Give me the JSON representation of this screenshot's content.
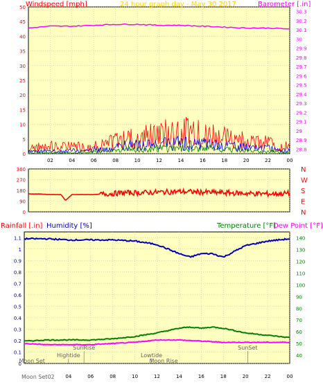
{
  "colors": {
    "frame_bg": "#ffffff",
    "plot_bg": "#ffffc0",
    "grid": "#b8b8b8",
    "wind_red": "#ff0000",
    "wind_blue": "#0000ff",
    "wind_green": "#008000",
    "barometer": "#ff00ff",
    "title": "#ffd000",
    "dir_line": "#ff0000",
    "humidity": "#0000c0",
    "temperature": "#008000",
    "dewpoint": "#ff00ff",
    "events": "#606060"
  },
  "chart_data": [
    {
      "type": "line",
      "title": "24 hour graph day - May 30 2017",
      "left_axis_label": "Windspeed [mph]",
      "right_axis_label": "Barometer [.in]",
      "x_tick_labels": [
        "02",
        "04",
        "06",
        "08",
        "10",
        "12",
        "14",
        "16",
        "18",
        "20",
        "22",
        "00"
      ],
      "x_ticks_hour": [
        2,
        4,
        6,
        8,
        10,
        12,
        14,
        16,
        18,
        20,
        22,
        24
      ],
      "y_left_ticks": [
        "0",
        "5",
        "10",
        "15",
        "20",
        "25",
        "30",
        "35",
        "40",
        "45",
        "50"
      ],
      "y_left_range": [
        0,
        50
      ],
      "y_right_ticks": [
        "28.8",
        "28.9",
        "29",
        "29.1",
        "29.2",
        "29.3",
        "29.4",
        "29.5",
        "29.6",
        "29.7",
        "29.8",
        "29.9",
        "30",
        "30.1",
        "30.2",
        "30.3"
      ],
      "y_right_range": [
        28.75,
        30.35
      ],
      "series": [
        {
          "kind": "wind_gust",
          "x_hours": [
            0,
            1,
            2,
            3,
            4,
            5,
            6,
            7,
            8,
            9,
            10,
            11,
            12,
            13,
            14,
            15,
            16,
            17,
            18,
            19,
            20,
            21,
            22,
            23,
            24
          ],
          "values": [
            3,
            3,
            4,
            3,
            4,
            3,
            4,
            4,
            6,
            8,
            8,
            8,
            9,
            10,
            10,
            10,
            9,
            9,
            8,
            7,
            6,
            5,
            5,
            4,
            3
          ]
        },
        {
          "kind": "wind_avg",
          "x_hours": [
            0,
            1,
            2,
            3,
            4,
            5,
            6,
            7,
            8,
            9,
            10,
            11,
            12,
            13,
            14,
            15,
            16,
            17,
            18,
            19,
            20,
            21,
            22,
            23,
            24
          ],
          "values": [
            1,
            1,
            1.5,
            1,
            1.5,
            1,
            2,
            2,
            3,
            4,
            4,
            4,
            4.5,
            5,
            5,
            5,
            4.5,
            4.5,
            4,
            3.5,
            3,
            2.5,
            2.5,
            2,
            1.5
          ]
        },
        {
          "kind": "wind_low",
          "x_hours": [
            0,
            1,
            2,
            3,
            4,
            5,
            6,
            7,
            8,
            9,
            10,
            11,
            12,
            13,
            14,
            15,
            16,
            17,
            18,
            19,
            20,
            21,
            22,
            23,
            24
          ],
          "values": [
            0.5,
            0.5,
            0.5,
            0.5,
            0.5,
            0.5,
            1,
            1,
            1.5,
            2,
            2,
            2,
            2.5,
            2.5,
            2.5,
            2.5,
            2.5,
            2.5,
            2,
            2,
            1.5,
            1,
            1,
            1,
            0.5
          ]
        },
        {
          "kind": "barometer",
          "x_hours": [
            0,
            2,
            4,
            6,
            8,
            10,
            12,
            14,
            16,
            18,
            20,
            22,
            24
          ],
          "values": [
            30.12,
            30.14,
            30.14,
            30.15,
            30.16,
            30.16,
            30.15,
            30.15,
            30.14,
            30.13,
            30.12,
            30.12,
            30.11
          ]
        }
      ]
    },
    {
      "type": "scatter",
      "y_left_ticks": [
        "360",
        "270",
        "180",
        "90",
        "0"
      ],
      "y_range": [
        0,
        360
      ],
      "right_compass_labels": [
        "N",
        "W",
        "S",
        "E",
        "N"
      ],
      "series": [
        {
          "kind": "wind_direction",
          "x_hours": [
            0,
            1,
            2,
            3,
            3.4,
            4,
            5,
            6,
            7,
            8,
            9,
            10,
            12,
            14,
            16,
            18,
            20,
            22,
            24
          ],
          "values": [
            150,
            150,
            145,
            145,
            95,
            145,
            145,
            145,
            150,
            155,
            160,
            160,
            165,
            170,
            165,
            160,
            155,
            150,
            155
          ]
        }
      ]
    },
    {
      "type": "line",
      "left_axis_label_1": "Rainfall [.in]",
      "left_axis_label_2": "Humidity [%]",
      "right_axis_label_1": "Temperature [°F]",
      "right_axis_label_2": "Dew Point [°F]",
      "x_tick_labels": [
        "02",
        "04",
        "06",
        "08",
        "10",
        "12",
        "14",
        "16",
        "18",
        "20",
        "22",
        "00"
      ],
      "x_ticks_hour": [
        2,
        4,
        6,
        8,
        10,
        12,
        14,
        16,
        18,
        20,
        22,
        24
      ],
      "y_left_ticks": [
        "0",
        "0.1",
        "0.2",
        "0.3",
        "0.4",
        "0.5",
        "0.6",
        "0.7",
        "0.8",
        "0.9",
        "1",
        "1.1"
      ],
      "y_left_range": [
        0,
        1.15
      ],
      "y_right_ticks": [
        "40",
        "50",
        "60",
        "70",
        "80",
        "90",
        "100",
        "110",
        "120",
        "130",
        "140"
      ],
      "y_right_range": [
        33,
        145
      ],
      "series": [
        {
          "kind": "humidity",
          "x_hours": [
            0,
            2,
            4,
            6,
            8,
            10,
            12,
            13,
            14,
            15,
            16,
            17,
            18,
            19,
            20,
            22,
            24
          ],
          "values": [
            1.09,
            1.09,
            1.08,
            1.08,
            1.08,
            1.07,
            1.04,
            1.0,
            0.96,
            0.93,
            0.96,
            0.96,
            0.93,
            0.98,
            1.03,
            1.07,
            1.09
          ]
        },
        {
          "kind": "temperature",
          "x_hours": [
            0,
            2,
            4,
            6,
            8,
            10,
            12,
            13,
            14,
            15,
            16,
            17,
            18,
            20,
            22,
            24
          ],
          "values": [
            52,
            53,
            53,
            53,
            54,
            56,
            59,
            61,
            63,
            64,
            63,
            64,
            63,
            59,
            57,
            55
          ]
        },
        {
          "kind": "dewpoint",
          "x_hours": [
            0,
            2,
            4,
            6,
            8,
            10,
            12,
            14,
            16,
            18,
            20,
            22,
            24
          ],
          "values": [
            50,
            49,
            49,
            49,
            50,
            51,
            53,
            53,
            52,
            51,
            51,
            51,
            51
          ]
        }
      ],
      "events": [
        {
          "label": "Moon Set",
          "hour": 0.7,
          "row": 1
        },
        {
          "label": "Hightide",
          "hour": 4.0,
          "row": 2
        },
        {
          "label": "SunRise",
          "hour": 5.4,
          "row": 3
        },
        {
          "label": "Lowtide",
          "hour": 11.5,
          "row": 2
        },
        {
          "label": "Moon Rise",
          "hour": 12.6,
          "row": 1
        },
        {
          "label": "SunSet",
          "hour": 20.2,
          "row": 3
        }
      ],
      "bottom_left_label": "Moon Set02"
    }
  ]
}
